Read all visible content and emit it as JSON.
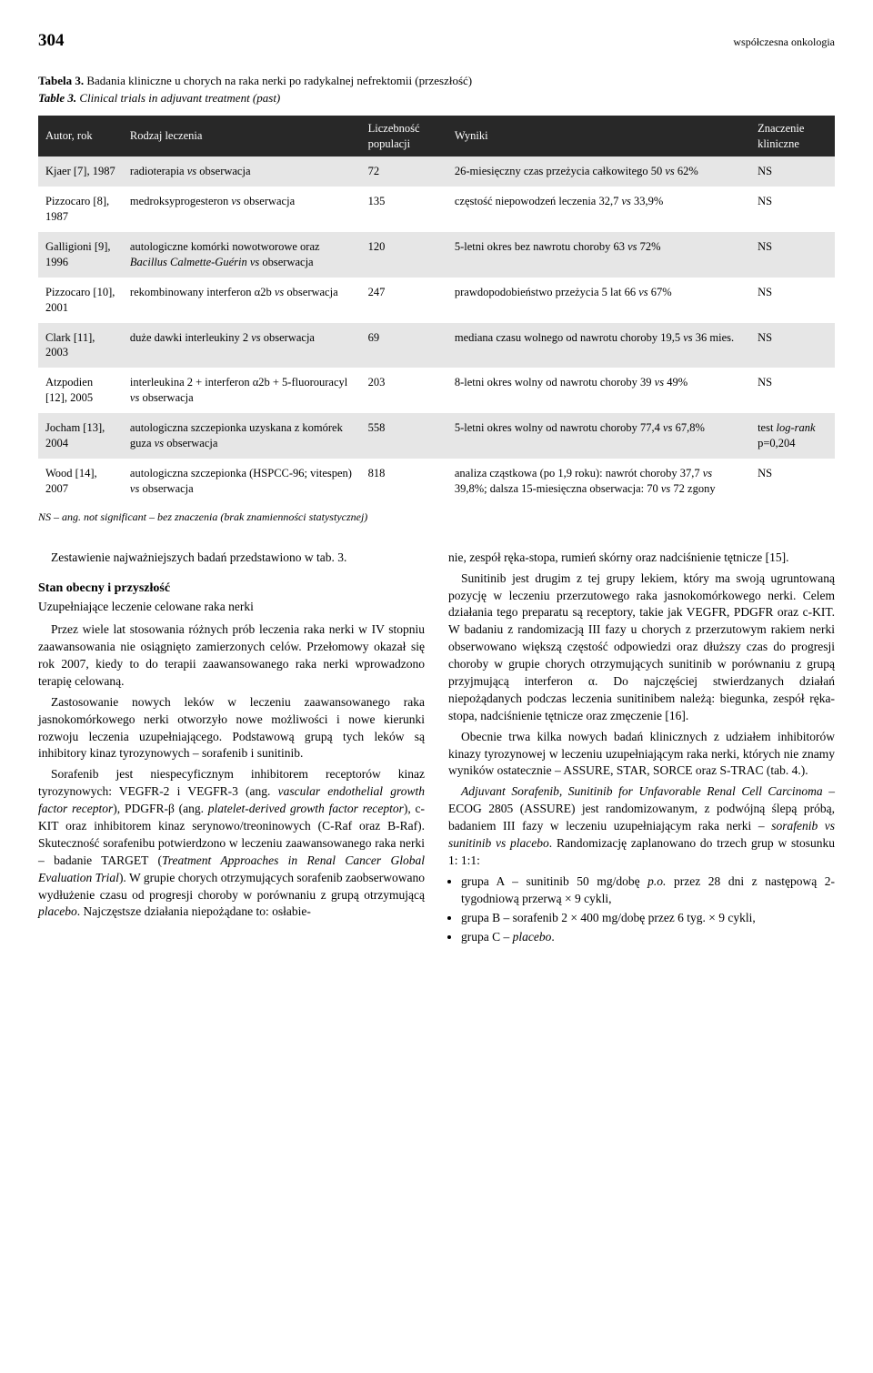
{
  "page_number": "304",
  "journal": "współczesna onkologia",
  "table_caption_bold": "Tabela 3.",
  "table_caption_text": "Badania kliniczne u chorych na raka nerki po radykalnej nefrektomii (przeszłość)",
  "table_caption_en_bold": "Table 3.",
  "table_caption_en_text": "Clinical trials in adjuvant treatment (past)",
  "table": {
    "headers": [
      "Autor, rok",
      "Rodzaj leczenia",
      "Liczebność populacji",
      "Wyniki",
      "Znaczenie kliniczne"
    ],
    "rows": [
      {
        "author": "Kjaer [7], 1987",
        "treatment": "radioterapia vs obserwacja",
        "n": "72",
        "result": "26-miesięczny czas przeżycia całkowitego 50 vs 62%",
        "sig": "NS"
      },
      {
        "author": "Pizzocaro [8], 1987",
        "treatment": "medroksyprogesteron vs obserwacja",
        "n": "135",
        "result": "częstość niepowodzeń leczenia 32,7 vs 33,9%",
        "sig": "NS"
      },
      {
        "author": "Galligioni [9], 1996",
        "treatment": "autologiczne komórki nowotworowe oraz Bacillus Calmette-Guérin vs obserwacja",
        "n": "120",
        "result": "5-letni okres bez nawrotu choroby 63 vs 72%",
        "sig": "NS"
      },
      {
        "author": "Pizzocaro [10], 2001",
        "treatment": "rekombinowany interferon α2b vs obserwacja",
        "n": "247",
        "result": "prawdopodobieństwo przeżycia 5 lat 66 vs 67%",
        "sig": "NS"
      },
      {
        "author": "Clark [11], 2003",
        "treatment": "duże dawki interleukiny 2 vs obserwacja",
        "n": "69",
        "result": "mediana czasu wolnego od nawrotu choroby 19,5 vs 36 mies.",
        "sig": "NS"
      },
      {
        "author": "Atzpodien [12], 2005",
        "treatment": "interleukina 2 + interferon α2b + 5-fluorouracyl vs obserwacja",
        "n": "203",
        "result": "8-letni okres wolny od nawrotu choroby 39 vs 49%",
        "sig": "NS"
      },
      {
        "author": "Jocham [13], 2004",
        "treatment": "autologiczna szczepionka uzyskana z komórek guza vs obserwacja",
        "n": "558",
        "result": "5-letni okres wolny od nawrotu choroby 77,4 vs 67,8%",
        "sig": "test log-rank p=0,204"
      },
      {
        "author": "Wood [14], 2007",
        "treatment": "autologiczna szczepionka (HSPCC-96; vitespen) vs obserwacja",
        "n": "818",
        "result": "analiza cząstkowa (po 1,9 roku): nawrót choroby 37,7 vs 39,8%; dalsza 15-miesięczna obserwacja: 70 vs 72 zgony",
        "sig": "NS"
      }
    ],
    "footnote": "NS – ang. not significant – bez znaczenia (brak znamienności statystycznej)"
  },
  "left_col": {
    "p1": "Zestawienie najważniejszych badań przedstawiono w tab. 3.",
    "h_section": "Stan obecny i przyszłość",
    "h_sub": "Uzupełniające leczenie celowane raka nerki",
    "p2": "Przez wiele lat stosowania różnych prób leczenia raka nerki w IV stopniu zaawansowania nie osiągnięto zamierzonych celów. Przełomowy okazał się rok 2007, kiedy to do terapii zaawansowanego raka nerki wprowadzono terapię celowaną.",
    "p3": "Zastosowanie nowych leków w leczeniu zaawansowanego raka jasnokomórkowego nerki otworzyło nowe możliwości i nowe kierunki rozwoju leczenia uzupełniającego. Podstawową grupą tych leków są inhibitory kinaz tyrozynowych – sorafenib i sunitinib.",
    "p4a": "Sorafenib jest niespecyficznym inhibitorem receptorów kinaz tyrozynowych: VEGFR-2 i VEGFR-3 (ang. ",
    "p4i1": "vascular endothelial growth factor receptor",
    "p4b": "), PDGFR-β (ang. ",
    "p4i2": "platelet-derived growth factor receptor",
    "p4c": "), c-KIT oraz inhibitorem kinaz serynowo/treoninowych (C-Raf oraz B-Raf). Skuteczność sorafenibu potwierdzono w leczeniu zaawansowanego raka nerki – badanie TARGET (",
    "p4i3": "Treatment Approaches in Renal Cancer Global Evaluation Trial",
    "p4d": "). W grupie chorych otrzymujących sorafenib zaobserwowano wydłużenie czasu od progresji choroby w porównaniu z grupą otrzymującą ",
    "p4i4": "placebo",
    "p4e": ". Najczęstsze działania niepożądane to: osłabie-"
  },
  "right_col": {
    "p1": "nie, zespół ręka-stopa, rumień skórny oraz nadciśnienie tętnicze [15].",
    "p2": "Sunitinib jest drugim z tej grupy lekiem, który ma swoją ugruntowaną pozycję w leczeniu przerzutowego raka jasnokomórkowego nerki. Celem działania tego preparatu są receptory, takie jak VEGFR, PDGFR oraz c-KIT. W badaniu z randomizacją III fazy u chorych z przerzutowym rakiem nerki obserwowano większą częstość odpowiedzi oraz dłuższy czas do progresji choroby w grupie chorych otrzymujących sunitinib w porównaniu z grupą przyjmującą interferon α. Do najczęściej stwierdzanych działań niepożądanych podczas leczenia sunitinibem należą: biegunka, zespół ręka-stopa, nadciśnienie tętnicze oraz zmęczenie [16].",
    "p3": "Obecnie trwa kilka nowych badań klinicznych z udziałem inhibitorów kinazy tyrozynowej w leczeniu uzupełniającym raka nerki, których nie znamy wyników ostatecznie – ASSURE, STAR, SORCE oraz S-TRAC (tab. 4.).",
    "p4i1": "Adjuvant Sorafenib, Sunitinib for Unfavorable Renal Cell Carcinoma",
    "p4a": " – ECOG 2805 (ASSURE) jest randomizowanym, z podwójną ślepą próbą, badaniem III fazy w leczeniu uzupełniającym raka nerki – ",
    "p4i2": "sorafenib vs sunitinib vs placebo",
    "p4b": ". Randomizację zaplanowano do trzech grup w stosunku 1: 1:1:",
    "li1a": "grupa A – sunitinib 50 mg/dobę ",
    "li1i": "p.o.",
    "li1b": " przez 28 dni z następową 2-tygodniową przerwą × 9 cykli,",
    "li2": "grupa B – sorafenib 2 × 400 mg/dobę przez 6 tyg. × 9 cykli,",
    "li3a": "grupa C – ",
    "li3i": "placebo",
    "li3b": "."
  }
}
